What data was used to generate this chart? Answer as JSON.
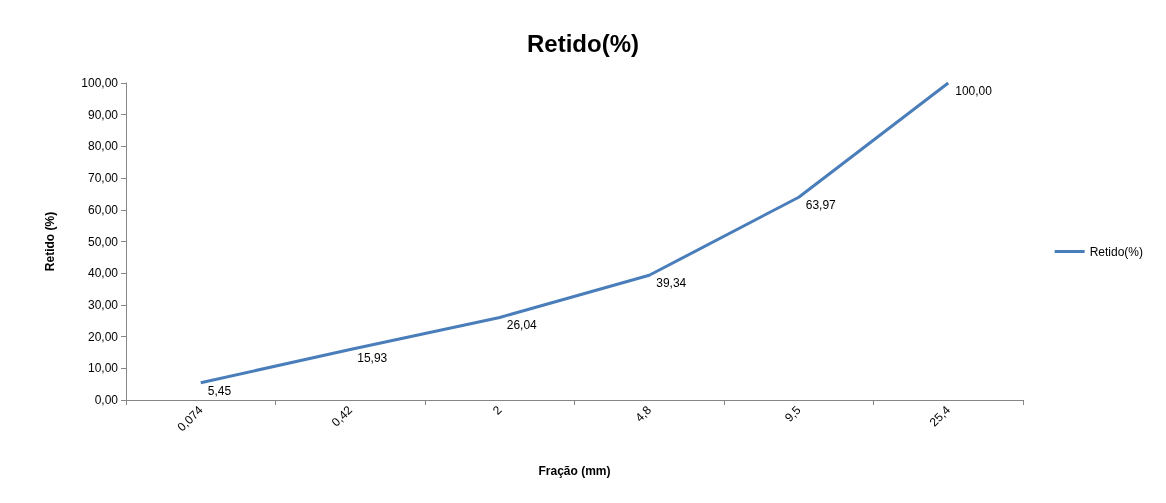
{
  "chart_data": {
    "type": "line",
    "title": "Retido(%)",
    "xlabel": "Fração (mm)",
    "ylabel": "Retido (%)",
    "categories": [
      "0,074",
      "0,42",
      "2",
      "4,8",
      "9,5",
      "25,4"
    ],
    "series": [
      {
        "name": "Retido(%)",
        "color": "#4a7ebb",
        "values": [
          5.45,
          15.93,
          26.04,
          39.34,
          63.97,
          100.0
        ],
        "value_labels": [
          "5,45",
          "15,93",
          "26,04",
          "39,34",
          "63,97",
          "100,00"
        ]
      }
    ],
    "ylim": [
      0,
      100
    ],
    "yticks": [
      {
        "value": 0,
        "label": "0,00"
      },
      {
        "value": 10,
        "label": "10,00"
      },
      {
        "value": 20,
        "label": "20,00"
      },
      {
        "value": 30,
        "label": "30,00"
      },
      {
        "value": 40,
        "label": "40,00"
      },
      {
        "value": 50,
        "label": "50,00"
      },
      {
        "value": 60,
        "label": "60,00"
      },
      {
        "value": 70,
        "label": "70,00"
      },
      {
        "value": 80,
        "label": "80,00"
      },
      {
        "value": 90,
        "label": "90,00"
      },
      {
        "value": 100,
        "label": "100,00"
      }
    ],
    "grid": false,
    "legend": "right",
    "marker": "none",
    "line_style": "solid"
  }
}
